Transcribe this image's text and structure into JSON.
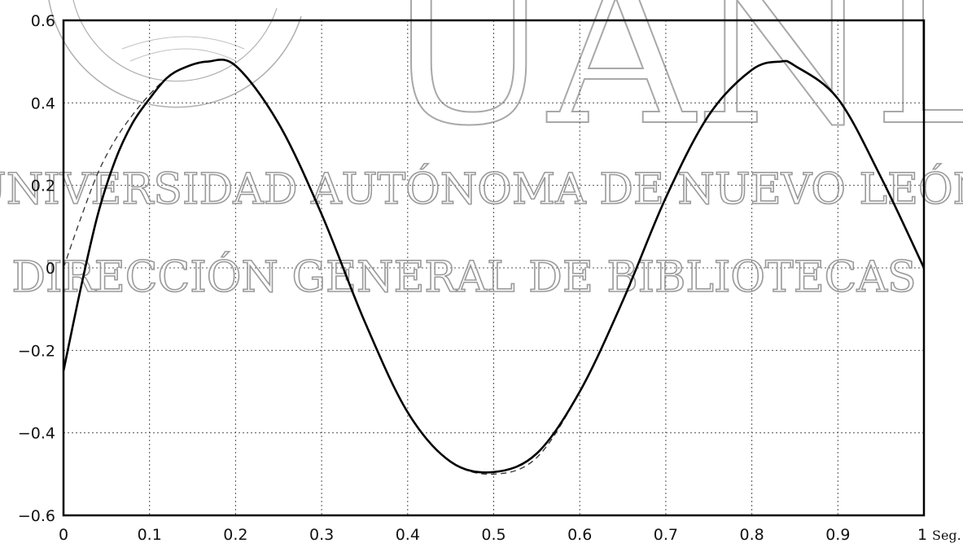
{
  "watermark": {
    "logo_text": "UANL",
    "line1": "UNIVERSIDAD AUTÓNOMA DE NUEVO LEÓN",
    "line2": "DIRECCIÓN GENERAL DE BIBLIOTECAS",
    "color": "#9a9a9a"
  },
  "chart_data": {
    "type": "line",
    "title": "",
    "xlabel": "",
    "ylabel": "",
    "x_unit_label": "Seg.",
    "xlim": [
      0,
      1
    ],
    "ylim": [
      -0.6,
      0.6
    ],
    "grid": true,
    "x_tick_labels": [
      "0",
      "0.1",
      "0.2",
      "0.3",
      "0.4",
      "0.5",
      "0.6",
      "0.7",
      "0.8",
      "0.9",
      "1"
    ],
    "y_tick_labels": [
      "0.6",
      "0.4",
      "0.2",
      "0",
      "-0.2",
      "-0.4",
      "-0.6"
    ],
    "series": [
      {
        "style": "solid",
        "color": "#000000",
        "x": [
          0,
          0.02,
          0.04,
          0.06,
          0.08,
          0.1,
          0.12,
          0.14,
          0.167,
          0.2,
          0.25,
          0.3,
          0.35,
          0.4,
          0.45,
          0.5,
          0.55,
          0.6,
          0.65,
          0.7,
          0.75,
          0.8,
          0.833,
          0.85,
          0.9,
          0.95,
          1
        ],
        "y": [
          -0.25,
          -0.05,
          0.13,
          0.26,
          0.35,
          0.41,
          0.46,
          0.485,
          0.5,
          0.49,
          0.35,
          0.13,
          -0.13,
          -0.35,
          -0.47,
          -0.495,
          -0.45,
          -0.3,
          -0.08,
          0.17,
          0.37,
          0.48,
          0.5,
          0.49,
          0.41,
          0.22,
          0
        ]
      },
      {
        "style": "dashed",
        "color": "#333333",
        "x": [
          0,
          0.02,
          0.04,
          0.06,
          0.08,
          0.1,
          0.12,
          0.14,
          0.167,
          0.2,
          0.25,
          0.3,
          0.35,
          0.4,
          0.45,
          0.5,
          0.55,
          0.6,
          0.65,
          0.7,
          0.75,
          0.8,
          0.833,
          0.85,
          0.9,
          0.95,
          1
        ],
        "y": [
          0,
          0.12,
          0.23,
          0.31,
          0.37,
          0.42,
          0.46,
          0.485,
          0.5,
          0.49,
          0.35,
          0.13,
          -0.13,
          -0.35,
          -0.47,
          -0.5,
          -0.46,
          -0.3,
          -0.08,
          0.17,
          0.37,
          0.48,
          0.5,
          0.49,
          0.41,
          0.22,
          0
        ]
      }
    ]
  }
}
